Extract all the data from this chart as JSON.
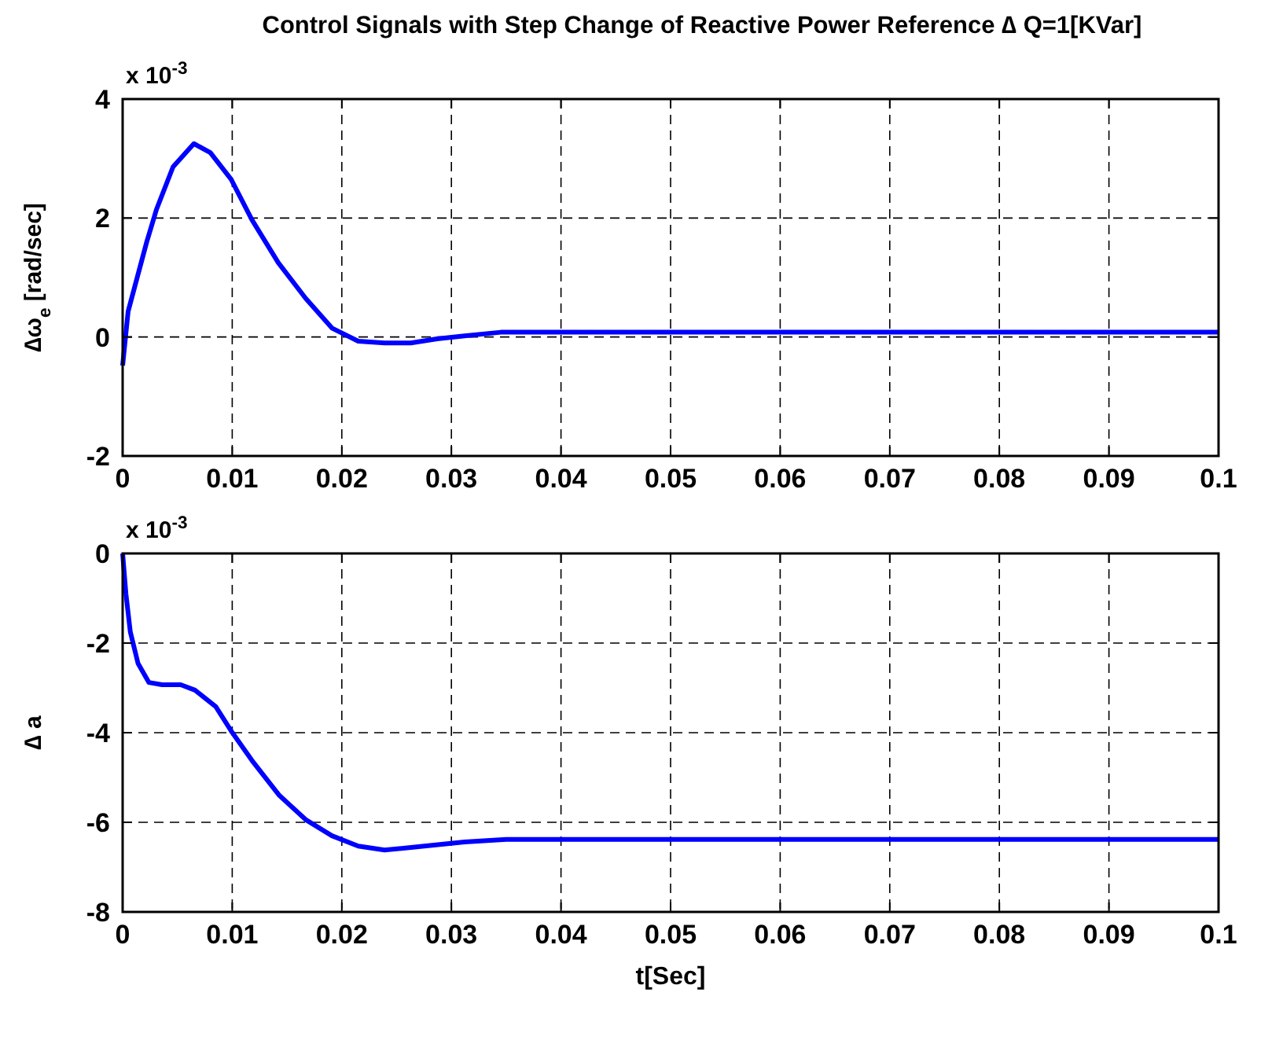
{
  "chart_data": [
    {
      "type": "line",
      "title": "Control Signals with Step Change of Reactive Power Reference ∆ Q=1[KVar]",
      "ylabel": "∆ω$_{e}$ [rad/sec]",
      "annotations": [
        "x 10$^{-3}$"
      ],
      "xlim": [
        0,
        0.1
      ],
      "xticks": [
        0,
        0.01,
        0.02,
        0.03,
        0.04,
        0.05,
        0.06,
        0.07,
        0.08,
        0.09,
        0.1
      ],
      "ylim": [
        -2,
        4
      ],
      "yticks": [
        -2,
        0,
        2,
        4
      ],
      "grid": true,
      "series": [
        {
          "color": "#0000ff",
          "x": [
            0,
            0.0005,
            0.0022,
            0.0031,
            0.0046,
            0.0065,
            0.008,
            0.0099,
            0.0118,
            0.0142,
            0.0167,
            0.0191,
            0.0215,
            0.0239,
            0.0263,
            0.0287,
            0.0312,
            0.0345,
            0.05,
            0.07,
            0.1
          ],
          "values": [
            -0.48,
            0.43,
            1.6,
            2.15,
            2.86,
            3.25,
            3.1,
            2.65,
            1.97,
            1.25,
            0.65,
            0.15,
            -0.07,
            -0.1,
            -0.1,
            -0.03,
            0.02,
            0.08,
            0.08,
            0.08,
            0.08
          ]
        }
      ]
    },
    {
      "type": "line",
      "xlabel": "t[Sec]",
      "ylabel": "∆ a",
      "annotations": [
        "x 10$^{-3}$"
      ],
      "xlim": [
        0,
        0.1
      ],
      "xticks": [
        0,
        0.01,
        0.02,
        0.03,
        0.04,
        0.05,
        0.06,
        0.07,
        0.08,
        0.09,
        0.1
      ],
      "ylim": [
        -8,
        0
      ],
      "yticks": [
        -8,
        -6,
        -4,
        -2,
        0
      ],
      "grid": true,
      "series": [
        {
          "color": "#0000ff",
          "x": [
            0,
            0.0003,
            0.0007,
            0.0014,
            0.0024,
            0.0036,
            0.0053,
            0.0066,
            0.0085,
            0.0099,
            0.0118,
            0.0143,
            0.0167,
            0.0191,
            0.0215,
            0.0239,
            0.0263,
            0.0312,
            0.035,
            0.05,
            0.07,
            0.1
          ],
          "values": [
            0,
            -0.9,
            -1.75,
            -2.45,
            -2.88,
            -2.93,
            -2.93,
            -3.05,
            -3.42,
            -3.96,
            -4.62,
            -5.4,
            -5.94,
            -6.3,
            -6.53,
            -6.62,
            -6.56,
            -6.44,
            -6.38,
            -6.38,
            -6.38,
            -6.38
          ]
        }
      ]
    }
  ]
}
